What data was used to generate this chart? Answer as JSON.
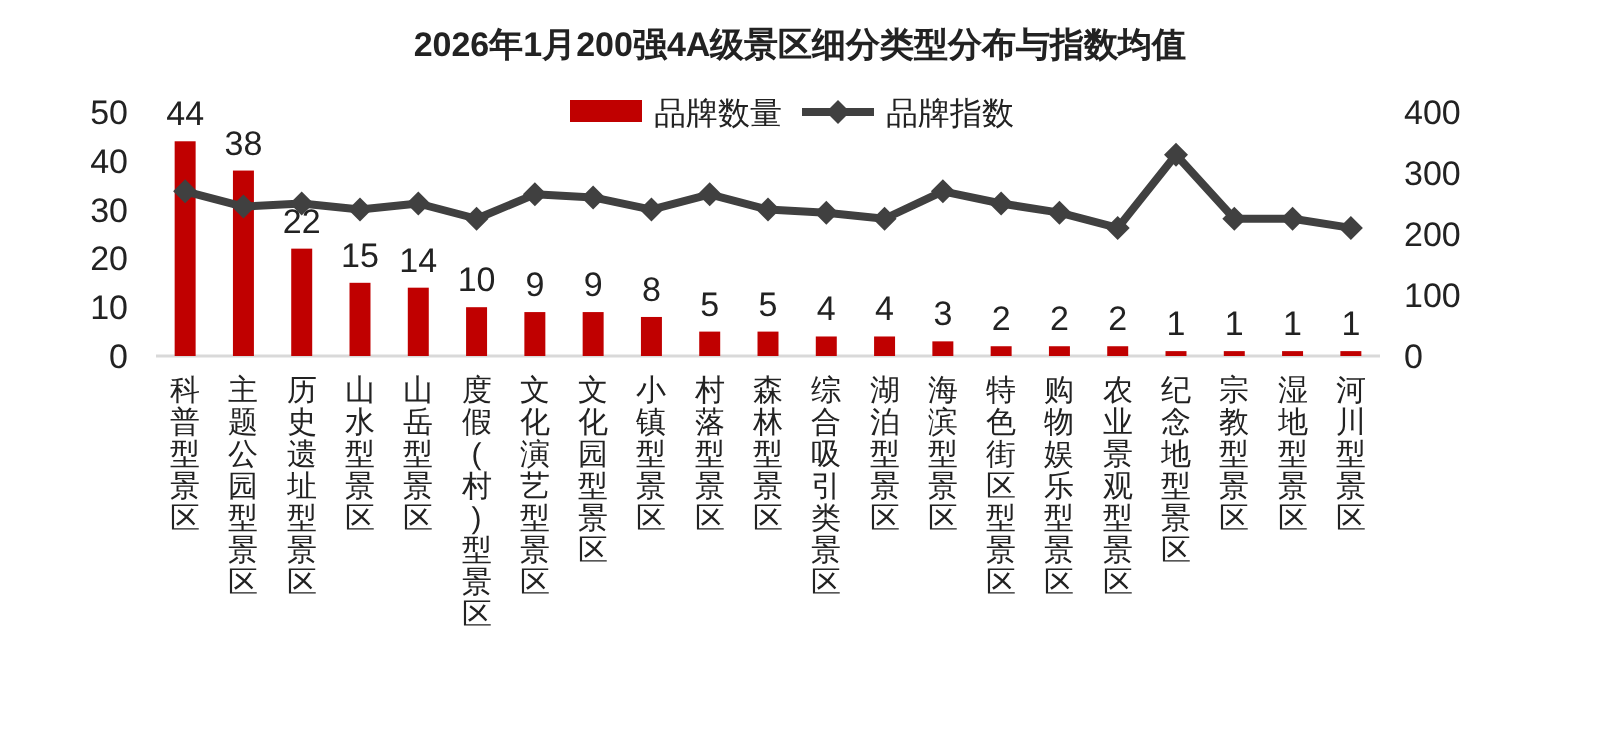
{
  "chart_data": {
    "type": "bar",
    "title": "2026年1月200强4A级景区细分类型分布与指数均值",
    "categories": [
      "科普型景区",
      "主题公园型景区",
      "历史遗址型景区",
      "山水型景区",
      "山岳型景区",
      "度假(村)型景区",
      "文化演艺型景区",
      "文化园型景区",
      "小镇型景区",
      "村落型景区",
      "森林型景区",
      "综合吸引类景区",
      "湖泊型景区",
      "海滨型景区",
      "特色街区型景区",
      "购物娱乐型景区",
      "农业景观型景区",
      "纪念地型景区",
      "宗教型景区",
      "湿地型景区",
      "河川型景区"
    ],
    "series": [
      {
        "name": "品牌数量",
        "color": "#c00000",
        "values": [
          44,
          38,
          22,
          15,
          14,
          10,
          9,
          9,
          8,
          5,
          5,
          4,
          4,
          3,
          2,
          2,
          2,
          1,
          1,
          1,
          1
        ],
        "value_labels": [
          "44",
          "38",
          "22",
          "15",
          "14",
          "10",
          "9",
          "9",
          "8",
          "5",
          "5",
          "4",
          "4",
          "3",
          "2",
          "2",
          "2",
          "1",
          "1",
          "1",
          "1"
        ]
      },
      {
        "name": "品牌指数",
        "type": "line",
        "axis": "y2",
        "color": "#404040",
        "marker": "diamond",
        "values": [
          270,
          245,
          250,
          240,
          250,
          225,
          265,
          260,
          240,
          265,
          240,
          235,
          225,
          270,
          250,
          235,
          210,
          330,
          225,
          225,
          210
        ]
      }
    ],
    "ylim": [
      0,
      50
    ],
    "yticks": [
      0,
      10,
      20,
      30,
      40,
      50
    ],
    "y2lim": [
      0,
      400
    ],
    "y2ticks": [
      0,
      100,
      200,
      300,
      400
    ],
    "grid": false,
    "legend": "top right"
  }
}
